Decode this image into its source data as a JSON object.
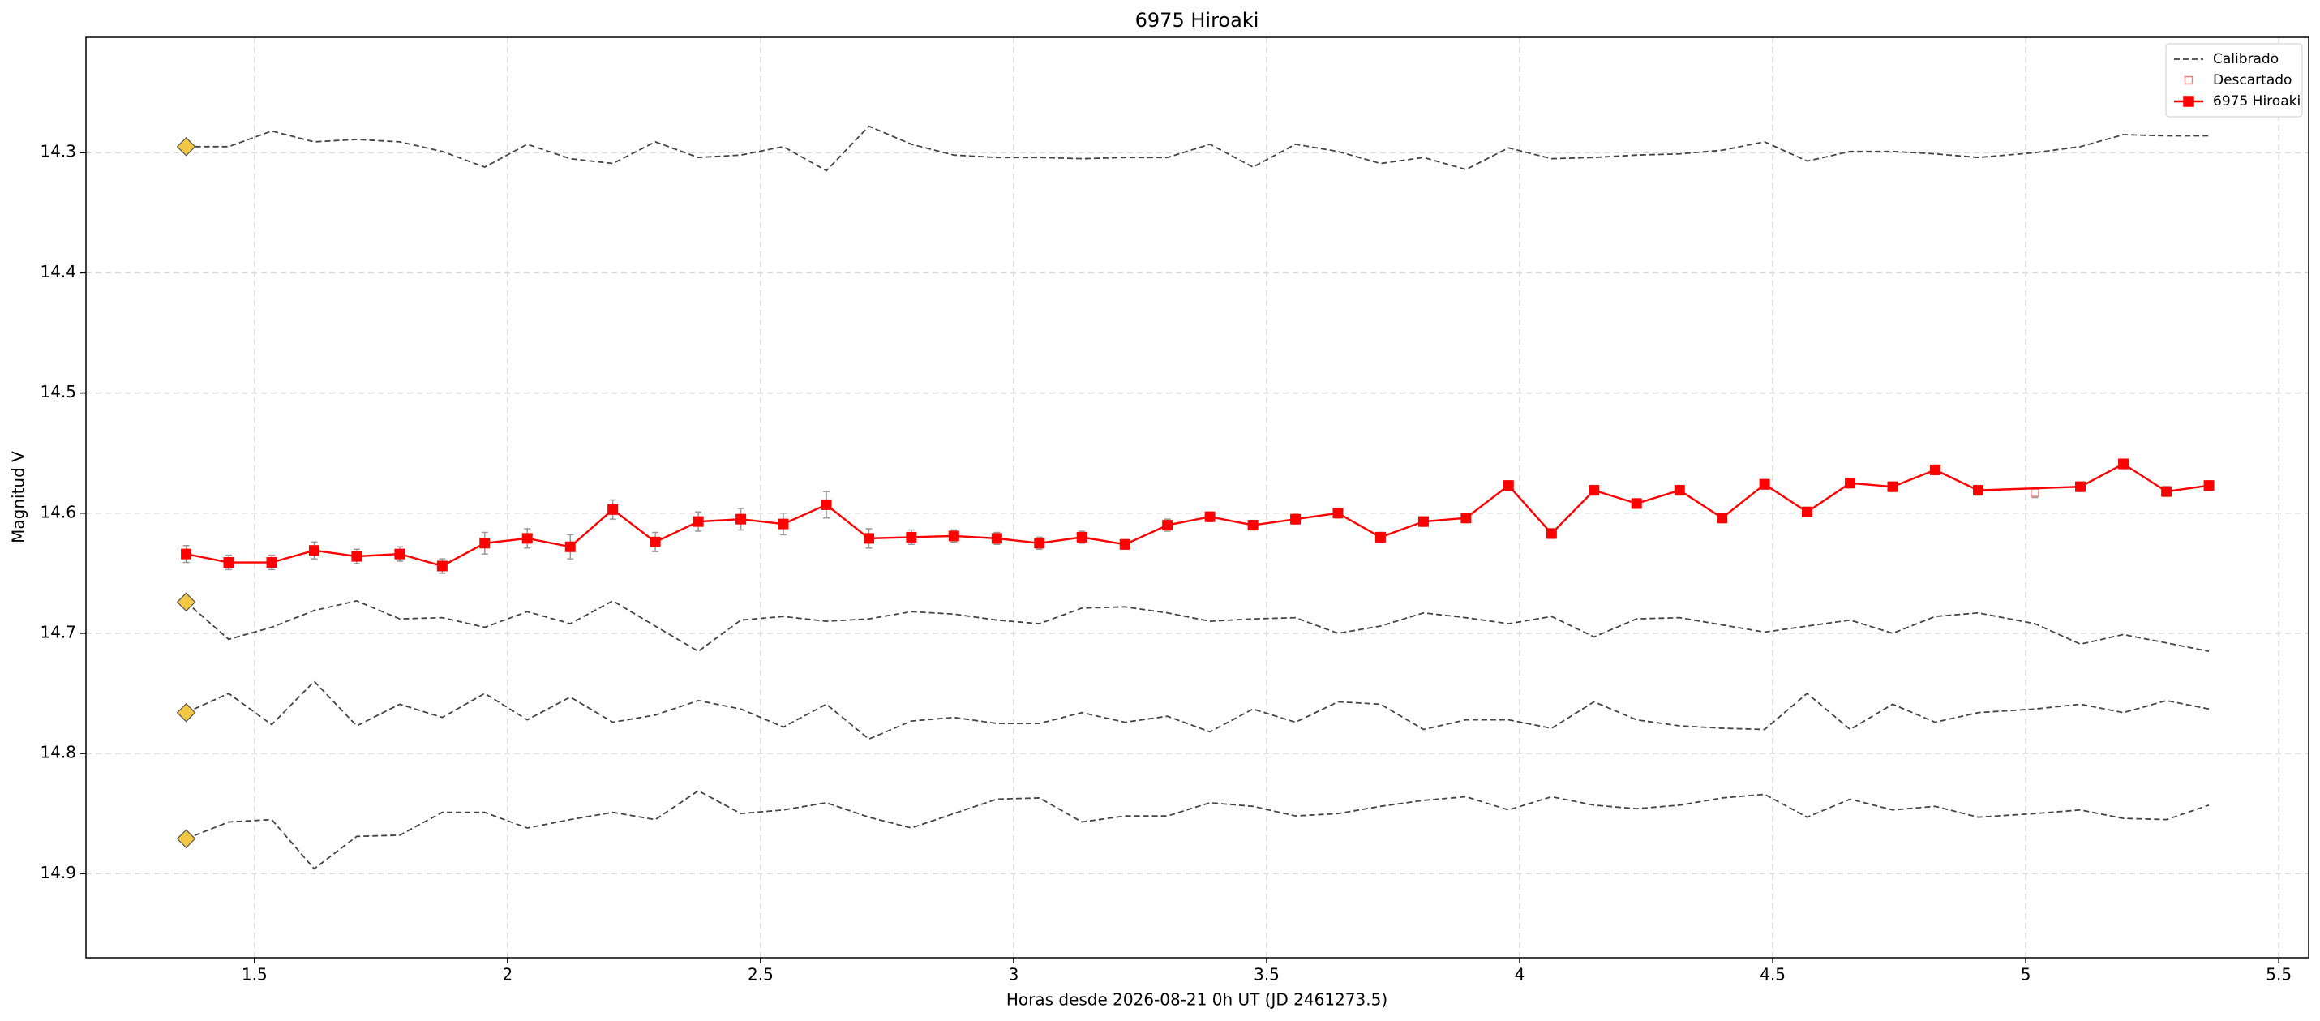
{
  "chart_data": {
    "type": "line",
    "title": "6975 Hiroaki",
    "x_label": "Horas desde 2026-08-21 0h UT (JD 2461273.5)",
    "y_label": "Magnitud V",
    "xlim": [
      1.167,
      5.559
    ],
    "xticks": [
      1.5,
      2.0,
      2.5,
      3.0,
      3.5,
      4.0,
      4.5,
      5.0,
      5.5
    ],
    "ylim": [
      14.97,
      14.204
    ],
    "yticks": [
      14.3,
      14.4,
      14.5,
      14.6,
      14.7,
      14.8,
      14.9
    ],
    "grid": true,
    "legend": "upper right",
    "start_marker_color": "#f2c744",
    "x": [
      1.365,
      1.449,
      1.534,
      1.618,
      1.702,
      1.787,
      1.871,
      1.955,
      2.039,
      2.124,
      2.208,
      2.292,
      2.377,
      2.461,
      2.545,
      2.63,
      2.714,
      2.798,
      2.882,
      2.967,
      3.051,
      3.135,
      3.22,
      3.304,
      3.388,
      3.473,
      3.557,
      3.641,
      3.725,
      3.81,
      3.894,
      3.978,
      4.063,
      4.147,
      4.231,
      4.316,
      4.4,
      4.484,
      4.568,
      4.653,
      4.737,
      4.821,
      4.906,
      5.018,
      5.108,
      5.193,
      5.278,
      5.362
    ],
    "series": [
      {
        "name": "Calibrado",
        "color": "#444444",
        "linestyle": "dashed",
        "values": [
          14.295,
          14.295,
          14.282,
          14.291,
          14.289,
          14.291,
          14.299,
          14.312,
          14.293,
          14.305,
          14.309,
          14.291,
          14.304,
          14.302,
          14.295,
          14.315,
          14.278,
          14.293,
          14.302,
          14.304,
          14.304,
          14.305,
          14.304,
          14.304,
          14.293,
          14.312,
          14.293,
          14.299,
          14.309,
          14.304,
          14.314,
          14.296,
          14.305,
          14.304,
          14.302,
          14.301,
          14.298,
          14.291,
          14.307,
          14.299,
          14.299,
          14.301,
          14.304,
          14.3,
          14.295,
          14.285,
          14.286,
          14.286
        ]
      },
      {
        "name": "Calibrado",
        "color": "#444444",
        "linestyle": "dashed",
        "values": [
          14.674,
          14.705,
          14.695,
          14.681,
          14.673,
          14.688,
          14.687,
          14.695,
          14.682,
          14.692,
          14.673,
          14.694,
          14.715,
          14.689,
          14.686,
          14.69,
          14.688,
          14.682,
          14.684,
          14.689,
          14.692,
          14.679,
          14.678,
          14.683,
          14.69,
          14.688,
          14.687,
          14.7,
          14.694,
          14.683,
          14.687,
          14.692,
          14.686,
          14.703,
          14.688,
          14.687,
          14.693,
          14.699,
          14.694,
          14.689,
          14.7,
          14.686,
          14.683,
          14.692,
          14.709,
          14.701,
          14.708,
          14.715
        ]
      },
      {
        "name": "Calibrado",
        "color": "#444444",
        "linestyle": "dashed",
        "values": [
          14.766,
          14.75,
          14.776,
          14.74,
          14.777,
          14.759,
          14.77,
          14.75,
          14.772,
          14.753,
          14.774,
          14.768,
          14.756,
          14.763,
          14.778,
          14.759,
          14.788,
          14.773,
          14.77,
          14.775,
          14.775,
          14.766,
          14.774,
          14.769,
          14.782,
          14.763,
          14.774,
          14.757,
          14.759,
          14.78,
          14.772,
          14.772,
          14.779,
          14.757,
          14.772,
          14.777,
          14.779,
          14.78,
          14.75,
          14.78,
          14.759,
          14.774,
          14.766,
          14.763,
          14.759,
          14.766,
          14.756,
          14.763
        ]
      },
      {
        "name": "Calibrado",
        "color": "#444444",
        "linestyle": "dashed",
        "values": [
          14.871,
          14.857,
          14.855,
          14.896,
          14.869,
          14.868,
          14.849,
          14.849,
          14.862,
          14.855,
          14.849,
          14.855,
          14.831,
          14.85,
          14.847,
          14.841,
          14.853,
          14.862,
          14.85,
          14.838,
          14.837,
          14.857,
          14.852,
          14.852,
          14.841,
          14.844,
          14.852,
          14.85,
          14.844,
          14.839,
          14.836,
          14.847,
          14.836,
          14.843,
          14.846,
          14.843,
          14.837,
          14.834,
          14.853,
          14.838,
          14.847,
          14.844,
          14.853,
          14.85,
          14.847,
          14.854,
          14.855,
          14.843
        ]
      },
      {
        "name": "Descartado",
        "color": "#f08080",
        "marker": "open-square",
        "x": [
          5.018
        ],
        "values": [
          14.583
        ],
        "errors": [
          0.004
        ]
      },
      {
        "name": "6975 Hiroaki",
        "color": "#ff0000",
        "linestyle": "solid",
        "marker": "square",
        "x": [
          1.365,
          1.449,
          1.534,
          1.618,
          1.702,
          1.787,
          1.871,
          1.955,
          2.039,
          2.124,
          2.208,
          2.292,
          2.377,
          2.461,
          2.545,
          2.63,
          2.714,
          2.798,
          2.882,
          2.967,
          3.051,
          3.135,
          3.22,
          3.304,
          3.388,
          3.473,
          3.557,
          3.641,
          3.725,
          3.81,
          3.894,
          3.978,
          4.063,
          4.147,
          4.231,
          4.316,
          4.4,
          4.484,
          4.568,
          4.653,
          4.737,
          4.821,
          4.906,
          5.108,
          5.193,
          5.278,
          5.362
        ],
        "values": [
          14.634,
          14.641,
          14.641,
          14.631,
          14.636,
          14.634,
          14.644,
          14.625,
          14.621,
          14.628,
          14.597,
          14.624,
          14.607,
          14.605,
          14.609,
          14.593,
          14.621,
          14.62,
          14.619,
          14.621,
          14.625,
          14.62,
          14.626,
          14.61,
          14.603,
          14.61,
          14.605,
          14.6,
          14.62,
          14.607,
          14.604,
          14.577,
          14.617,
          14.581,
          14.592,
          14.581,
          14.604,
          14.576,
          14.599,
          14.575,
          14.578,
          14.564,
          14.581,
          14.578,
          14.559,
          14.582,
          14.577
        ],
        "errors": [
          0.007,
          0.006,
          0.006,
          0.007,
          0.006,
          0.006,
          0.006,
          0.009,
          0.008,
          0.01,
          0.008,
          0.008,
          0.008,
          0.009,
          0.009,
          0.011,
          0.008,
          0.006,
          0.005,
          0.005,
          0.005,
          0.005,
          0.004,
          0.005,
          0.004,
          0.004,
          0.004,
          0.004,
          0.004,
          0.004,
          0.004,
          0.004,
          0.004,
          0.004,
          0.004,
          0.004,
          0.004,
          0.004,
          0.004,
          0.004,
          0.004,
          0.004,
          0.004,
          0.004,
          0.004,
          0.004,
          0.004
        ]
      }
    ]
  }
}
